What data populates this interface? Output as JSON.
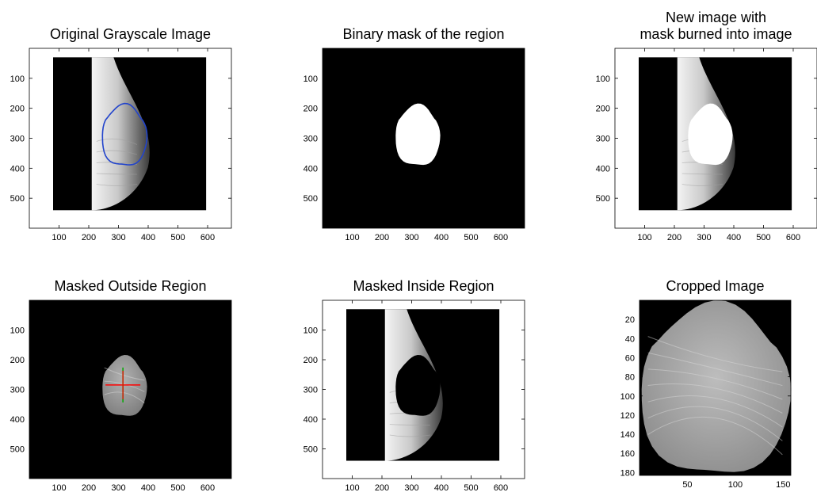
{
  "figure": {
    "background": "#ffffff",
    "axes_color": "#000000"
  },
  "chart_data": [
    {
      "type": "image",
      "title": "Original Grayscale Image",
      "xticks": [
        100,
        200,
        300,
        400,
        500,
        600
      ],
      "yticks": [
        100,
        200,
        300,
        400,
        500
      ],
      "xlim": [
        0,
        680
      ],
      "ylim": [
        600,
        0
      ],
      "image_extent": {
        "x": [
          80,
          595
        ],
        "y": [
          30,
          540
        ]
      },
      "content": "grayscale",
      "overlay": {
        "shape": "boundary-outline",
        "color": "#2244cc",
        "center": [
          320,
          290
        ],
        "radius": [
          75,
          105
        ]
      }
    },
    {
      "type": "image",
      "title": "Binary mask of the region",
      "xticks": [
        100,
        200,
        300,
        400,
        500,
        600
      ],
      "yticks": [
        100,
        200,
        300,
        400,
        500
      ],
      "xlim": [
        0,
        680
      ],
      "ylim": [
        600,
        0
      ],
      "image_extent": {
        "x": [
          0,
          680
        ],
        "y": [
          0,
          600
        ]
      },
      "content": "mask",
      "overlay": {
        "shape": "filled-region",
        "color": "#ffffff",
        "center": [
          320,
          290
        ],
        "radius": [
          75,
          105
        ]
      }
    },
    {
      "type": "image",
      "title": "New image with mask burned into image",
      "title_lines": [
        "New image with",
        "mask burned into image"
      ],
      "xticks": [
        100,
        200,
        300,
        400,
        500,
        600
      ],
      "yticks": [
        100,
        200,
        300,
        400,
        500
      ],
      "xlim": [
        0,
        680
      ],
      "ylim": [
        600,
        0
      ],
      "image_extent": {
        "x": [
          80,
          595
        ],
        "y": [
          30,
          540
        ]
      },
      "content": "grayscale",
      "overlay": {
        "shape": "filled-region",
        "color": "#ffffff",
        "center": [
          320,
          290
        ],
        "radius": [
          75,
          105
        ]
      }
    },
    {
      "type": "image",
      "title": "Masked Outside Region",
      "xticks": [
        100,
        200,
        300,
        400,
        500,
        600
      ],
      "yticks": [
        100,
        200,
        300,
        400,
        500
      ],
      "xlim": [
        0,
        680
      ],
      "ylim": [
        600,
        0
      ],
      "image_extent": {
        "x": [
          0,
          680
        ],
        "y": [
          0,
          600
        ]
      },
      "content": "region-only",
      "overlay": {
        "shape": "region-texture",
        "color": "#9a9a9a",
        "center": [
          320,
          290
        ],
        "radius": [
          75,
          105
        ]
      },
      "centroid": {
        "x": 315,
        "y": 285,
        "horizontal_color": "#ff0000",
        "vertical_color": "#00aa00"
      }
    },
    {
      "type": "image",
      "title": "Masked Inside Region",
      "xticks": [
        100,
        200,
        300,
        400,
        500,
        600
      ],
      "yticks": [
        100,
        200,
        300,
        400,
        500
      ],
      "xlim": [
        0,
        680
      ],
      "ylim": [
        600,
        0
      ],
      "image_extent": {
        "x": [
          80,
          595
        ],
        "y": [
          30,
          540
        ]
      },
      "content": "grayscale",
      "overlay": {
        "shape": "filled-region",
        "color": "#000000",
        "center": [
          320,
          290
        ],
        "radius": [
          75,
          105
        ]
      }
    },
    {
      "type": "image",
      "title": "Cropped Image",
      "xticks": [
        50,
        100,
        150
      ],
      "yticks": [
        20,
        40,
        60,
        80,
        100,
        120,
        140,
        160,
        180
      ],
      "xlim": [
        0,
        158
      ],
      "ylim": [
        183,
        0
      ],
      "image_extent": {
        "x": [
          0,
          158
        ],
        "y": [
          0,
          183
        ]
      },
      "content": "crop",
      "overlay": {
        "shape": "region-texture",
        "color": "#a6a6a6",
        "center": [
          79,
          93
        ],
        "radius": [
          78,
          92
        ]
      }
    }
  ]
}
